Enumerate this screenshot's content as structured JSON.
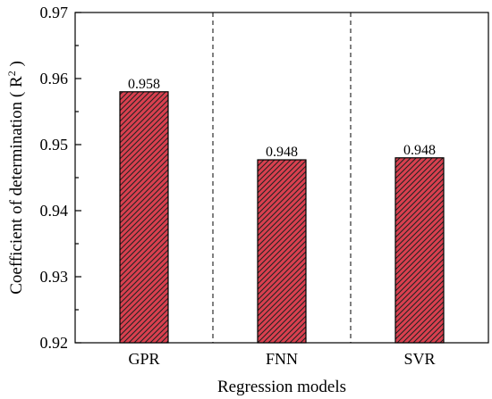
{
  "chart_data": {
    "type": "bar",
    "title": "",
    "xlabel": "Regression models",
    "ylabel": "Coefficient of determination",
    "ylabel_symbol": "R",
    "ylabel_superscript": "2",
    "categories": [
      "GPR",
      "FNN",
      "SVR"
    ],
    "values": [
      0.958,
      0.9477,
      0.948
    ],
    "data_labels": [
      "0.958",
      "0.948",
      "0.948"
    ],
    "ylim": [
      0.92,
      0.97
    ],
    "yticks": [
      0.92,
      0.93,
      0.94,
      0.95,
      0.96,
      0.97
    ],
    "ytick_labels": [
      "0.92",
      "0.93",
      "0.94",
      "0.95",
      "0.96",
      "0.97"
    ],
    "grid": false,
    "category_separators": "dashed vertical",
    "bar_fill": "#d9404f",
    "bar_hatch": "diagonal",
    "bar_edge": "#000000"
  }
}
